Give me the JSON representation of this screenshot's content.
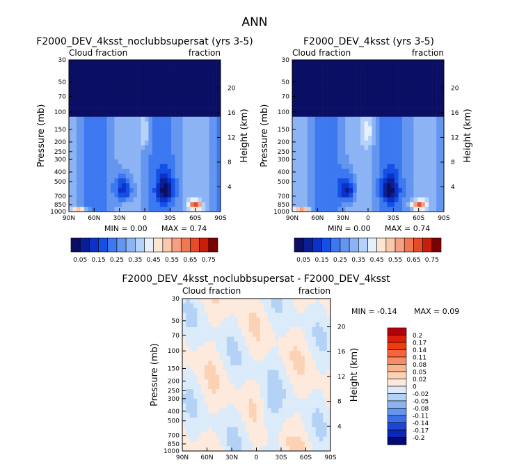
{
  "figure": {
    "main_title": "ANN"
  },
  "chart_data": [
    {
      "type": "heatmap",
      "title": "F2000_DEV_4ksst_noclubbsupersat (yrs 3-5)",
      "left_label": "Cloud fraction",
      "right_label": "fraction",
      "xlabel": "",
      "ylabel": "Pressure (mb)",
      "y2label": "Height (km)",
      "x_ticks": [
        "90N",
        "60N",
        "30N",
        "0",
        "30S",
        "60S",
        "90S"
      ],
      "x_values": [
        90,
        60,
        30,
        0,
        -30,
        -60,
        -90
      ],
      "pressure_ticks": [
        30,
        50,
        70,
        100,
        150,
        200,
        250,
        300,
        400,
        500,
        700,
        850,
        1000
      ],
      "height_ticks": [
        4,
        8,
        12,
        16,
        20
      ],
      "min_text": "MIN =   0.00",
      "max_text": "MAX =   0.74",
      "min_value": 0.0,
      "max_value": 0.74,
      "colorbar": {
        "labels": [
          "0.05",
          "0.15",
          "0.25",
          "0.35",
          "0.45",
          "0.55",
          "0.65",
          "0.75"
        ],
        "levels": [
          0.05,
          0.1,
          0.15,
          0.2,
          0.25,
          0.3,
          0.35,
          0.4,
          0.45,
          0.5,
          0.55,
          0.6,
          0.65,
          0.7,
          0.75
        ],
        "colors": [
          "#0a0f64",
          "#0a1e96",
          "#0a32c8",
          "#1450e6",
          "#3c78f0",
          "#6496f0",
          "#8cb4f5",
          "#b4d2fa",
          "#e6f0fa",
          "#fae6d2",
          "#fac8aa",
          "#f5a082",
          "#f07850",
          "#e64a28",
          "#c81e0a",
          "#7d0000"
        ]
      }
    },
    {
      "type": "heatmap",
      "title": "F2000_DEV_4ksst (yrs 3-5)",
      "left_label": "Cloud fraction",
      "right_label": "fraction",
      "xlabel": "",
      "ylabel": "Pressure (mb)",
      "y2label": "Height (km)",
      "x_ticks": [
        "90N",
        "60N",
        "30N",
        "0",
        "30S",
        "60S",
        "90S"
      ],
      "x_values": [
        90,
        60,
        30,
        0,
        -30,
        -60,
        -90
      ],
      "pressure_ticks": [
        30,
        50,
        70,
        100,
        150,
        200,
        250,
        300,
        400,
        500,
        700,
        850,
        1000
      ],
      "height_ticks": [
        4,
        8,
        12,
        16,
        20
      ],
      "min_text": "MIN =   0.00",
      "max_text": "MAX =   0.74",
      "min_value": 0.0,
      "max_value": 0.74,
      "colorbar": {
        "labels": [
          "0.05",
          "0.15",
          "0.25",
          "0.35",
          "0.45",
          "0.55",
          "0.65",
          "0.75"
        ],
        "levels": [
          0.05,
          0.1,
          0.15,
          0.2,
          0.25,
          0.3,
          0.35,
          0.4,
          0.45,
          0.5,
          0.55,
          0.6,
          0.65,
          0.7,
          0.75
        ],
        "colors": [
          "#0a0f64",
          "#0a1e96",
          "#0a32c8",
          "#1450e6",
          "#3c78f0",
          "#6496f0",
          "#8cb4f5",
          "#b4d2fa",
          "#e6f0fa",
          "#fae6d2",
          "#fac8aa",
          "#f5a082",
          "#f07850",
          "#e64a28",
          "#c81e0a",
          "#7d0000"
        ]
      }
    },
    {
      "type": "heatmap",
      "title": "F2000_DEV_4ksst_noclubbsupersat - F2000_DEV_4ksst",
      "left_label": "Cloud fraction",
      "right_label": "fraction",
      "xlabel": "",
      "ylabel": "Pressure (mb)",
      "y2label": "Height (km)",
      "x_ticks": [
        "90N",
        "60N",
        "30N",
        "0",
        "30S",
        "60S",
        "90S"
      ],
      "x_values": [
        90,
        60,
        30,
        0,
        -30,
        -60,
        -90
      ],
      "pressure_ticks": [
        30,
        50,
        70,
        100,
        150,
        200,
        250,
        300,
        400,
        500,
        700,
        850,
        1000
      ],
      "height_ticks": [
        4,
        8,
        12,
        16,
        20
      ],
      "min_text": "MIN =  -0.14",
      "max_text": "MAX =    0.09",
      "min_value": -0.14,
      "max_value": 0.09,
      "colorbar": {
        "labels": [
          "0.2",
          "0.17",
          "0.14",
          "0.11",
          "0.08",
          "0.05",
          "0.02",
          "0",
          "-0.02",
          "-0.05",
          "-0.08",
          "-0.11",
          "-0.14",
          "-0.17",
          "-0.2"
        ],
        "levels": [
          0.2,
          0.17,
          0.14,
          0.11,
          0.08,
          0.05,
          0.02,
          0,
          -0.02,
          -0.05,
          -0.08,
          -0.11,
          -0.14,
          -0.17,
          -0.2
        ],
        "colors": [
          "#b4000a",
          "#dc1e0a",
          "#f03c0a",
          "#f5643c",
          "#fa8c64",
          "#fab48c",
          "#fcd2b4",
          "#fdeadc",
          "#dcebfa",
          "#b4d2f5",
          "#8cb4f0",
          "#6496eb",
          "#3c6ee6",
          "#1e46d2",
          "#0a28b4",
          "#000a78"
        ]
      }
    }
  ]
}
